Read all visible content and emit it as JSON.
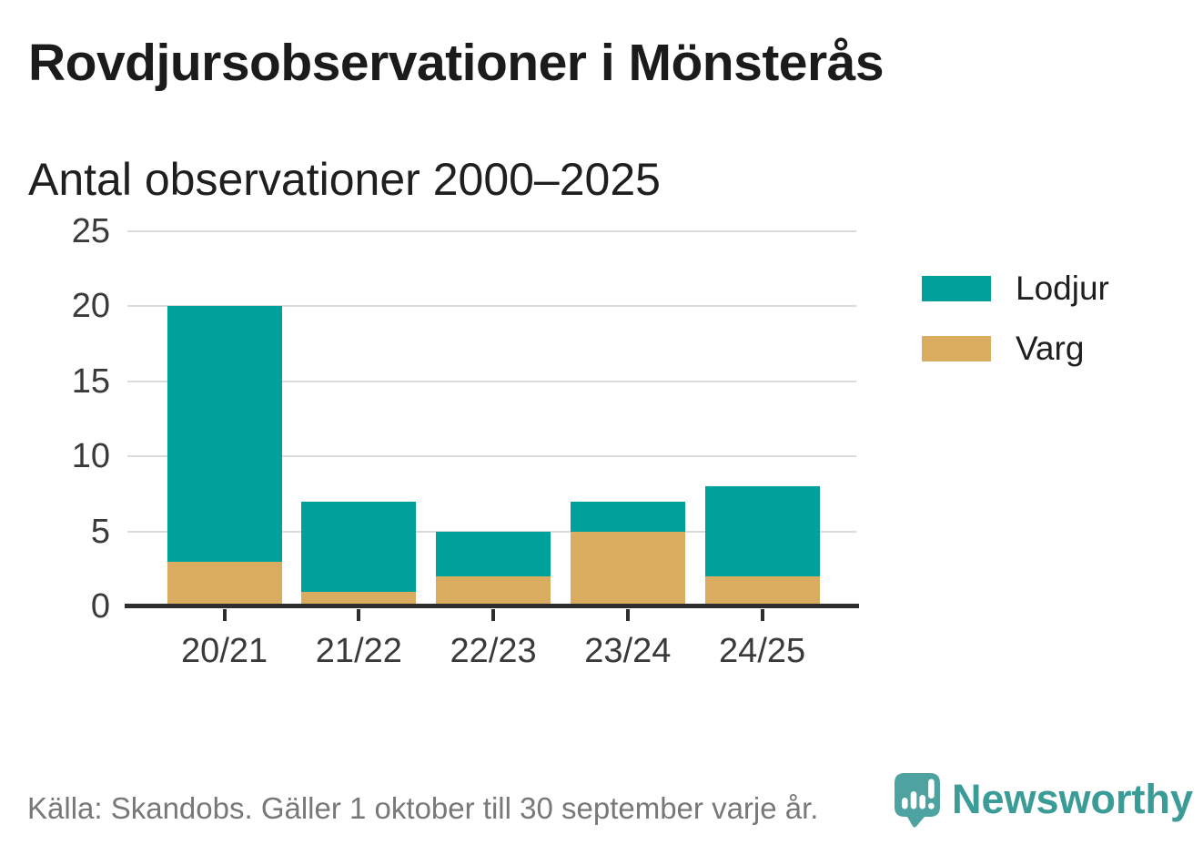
{
  "chart_data": {
    "type": "bar",
    "stacked": true,
    "title": "Rovdjursobservationer i Mönsterås",
    "subtitle": "Antal observationer 2000–2025",
    "categories": [
      "20/21",
      "21/22",
      "22/23",
      "23/24",
      "24/25"
    ],
    "series": [
      {
        "name": "Lodjur",
        "color": "#00a19a",
        "values": [
          17,
          6,
          3,
          2,
          6
        ]
      },
      {
        "name": "Varg",
        "color": "#d9ac60",
        "values": [
          3,
          1,
          2,
          5,
          2
        ]
      }
    ],
    "stack_order_bottom_to_top": [
      "Varg",
      "Lodjur"
    ],
    "totals": [
      20,
      7,
      5,
      7,
      8
    ],
    "xlabel": "",
    "ylabel": "",
    "ylim": [
      0,
      25
    ],
    "yticks": [
      0,
      5,
      10,
      15,
      20,
      25
    ],
    "grid": "horizontal",
    "legend_position": "right"
  },
  "footer": {
    "source": "Källa: Skandobs. Gäller 1 oktober till 30 september varje år.",
    "brand": "Newsworthy"
  },
  "colors": {
    "lodjur": "#00a19a",
    "varg": "#d9ac60",
    "gridline": "#dbdbdb",
    "axis_line": "#2e2e2e",
    "axis_text": "#3a3a3a",
    "footer_text": "#77787a",
    "brand_teal": "#3a9b97",
    "logo_bubble": "#4ea3a0"
  }
}
